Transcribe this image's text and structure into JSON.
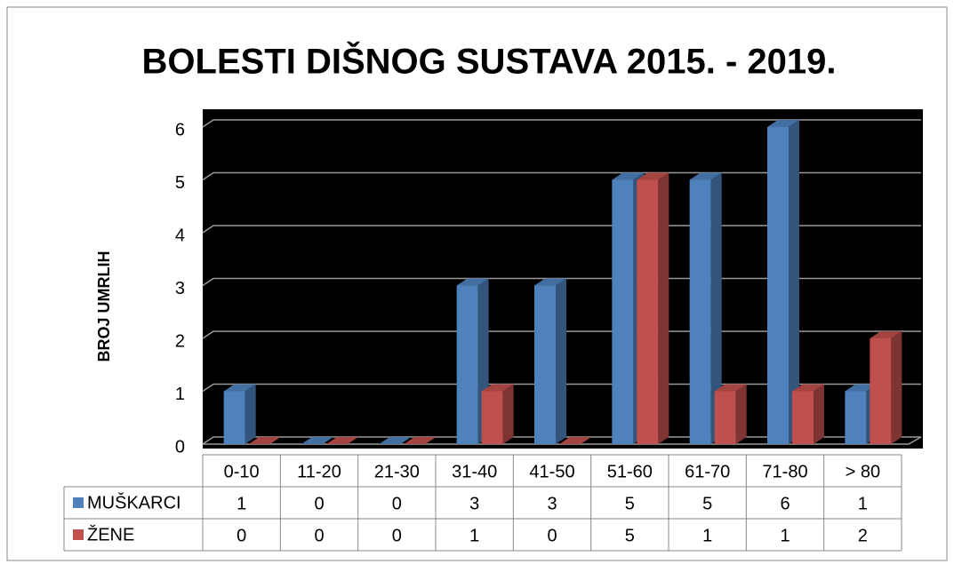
{
  "chart_data": {
    "type": "bar3d",
    "title": "BOLESTI DIŠNOG SUSTAVA 2015. - 2019.",
    "ylabel": "BROJ UMRLIH",
    "categories": [
      "0-10",
      "11-20",
      "21-30",
      "31-40",
      "41-50",
      "51-60",
      "61-70",
      "71-80",
      "> 80"
    ],
    "series": [
      {
        "name": "MUŠKARCI",
        "color": "#4f81bd",
        "values": [
          1,
          0,
          0,
          3,
          3,
          5,
          5,
          6,
          1
        ]
      },
      {
        "name": "ŽENE",
        "color": "#c0504d",
        "values": [
          0,
          0,
          0,
          1,
          0,
          5,
          1,
          1,
          2
        ]
      }
    ],
    "ylim": [
      0,
      6
    ],
    "yticks": [
      0,
      1,
      2,
      3,
      4,
      5,
      6
    ],
    "grid": true,
    "data_table": true
  }
}
